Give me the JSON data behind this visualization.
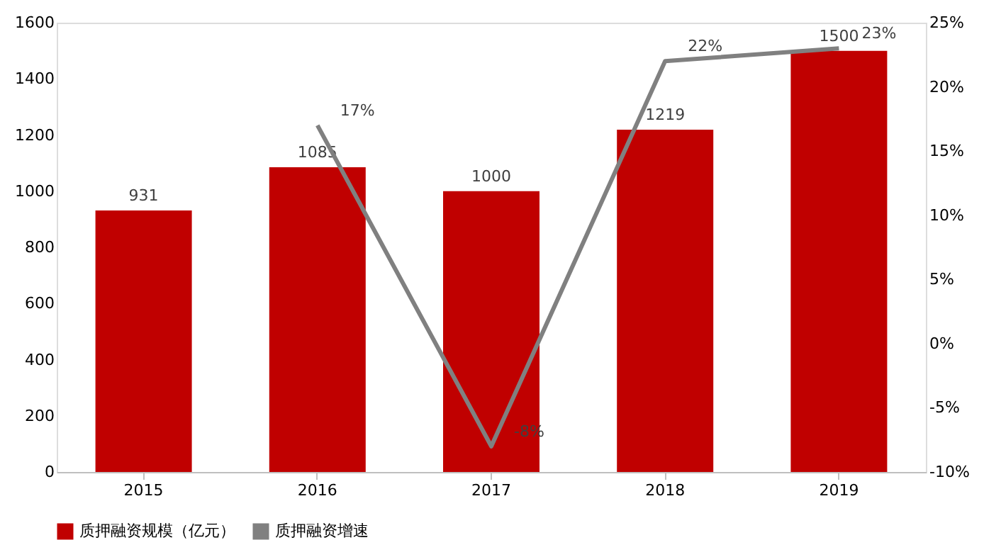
{
  "chart_data": {
    "type": "bar",
    "categories": [
      "2015",
      "2016",
      "2017",
      "2018",
      "2019"
    ],
    "series": [
      {
        "name": "质押融资规模（亿元）",
        "color": "#c00000",
        "values": [
          931,
          1085,
          1000,
          1219,
          1500
        ]
      },
      {
        "name": "质押融资增速",
        "type": "line",
        "axis": "y2",
        "color": "#808080",
        "values": [
          null,
          17,
          -8,
          22,
          23
        ],
        "value_labels": [
          null,
          "17%",
          "-8%",
          "22%",
          "23%"
        ]
      }
    ],
    "ylim": [
      0,
      1600
    ],
    "yticks": [
      0,
      200,
      400,
      600,
      800,
      1000,
      1200,
      1400,
      1600
    ],
    "y2lim": [
      -10,
      25
    ],
    "y2ticks": [
      {
        "value": -10,
        "label": "-10%"
      },
      {
        "value": -5,
        "label": "-5%"
      },
      {
        "value": 0,
        "label": "0%"
      },
      {
        "value": 5,
        "label": "5%"
      },
      {
        "value": 10,
        "label": "10%"
      },
      {
        "value": 15,
        "label": "15%"
      },
      {
        "value": 20,
        "label": "20%"
      },
      {
        "value": 25,
        "label": "25%"
      }
    ],
    "data_labels": true,
    "grid": false,
    "legend": "bottom",
    "marker": "none",
    "line_style": "solid"
  }
}
